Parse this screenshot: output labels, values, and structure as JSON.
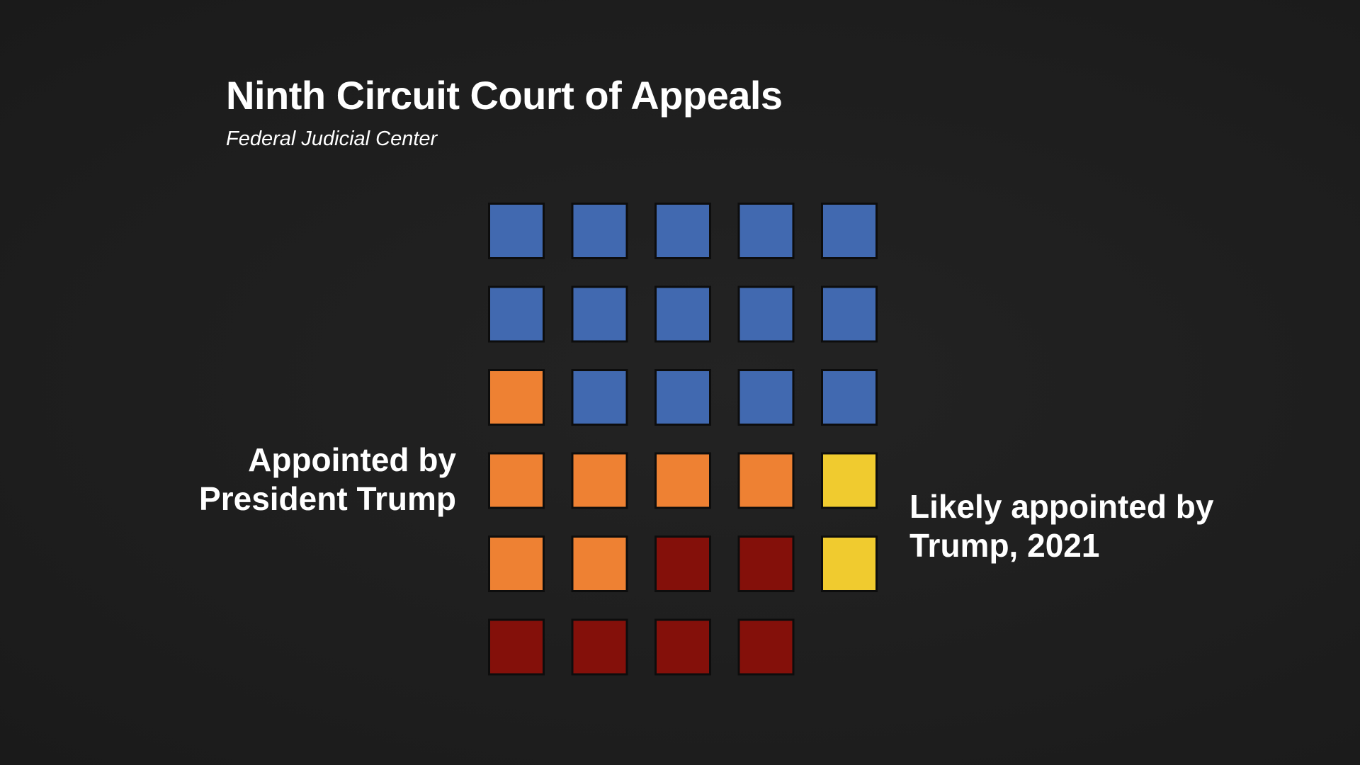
{
  "title": "Ninth Circuit Court of Appeals",
  "subtitle": "Federal Judicial Center",
  "annotations": {
    "left": [
      "Appointed by",
      "President Trump"
    ],
    "right": [
      "Likely appointed by",
      "Trump, 2021"
    ]
  },
  "colors": {
    "background": "#1e1e1e",
    "other": "#4169b0",
    "trump": "#ee8133",
    "trump_2021": "#f0cb2f",
    "dark_red": "#84100a",
    "outline": "#0d0d0d"
  },
  "chart_data": {
    "type": "waffle",
    "title": "Ninth Circuit Court of Appeals",
    "subtitle": "Federal Judicial Center",
    "columns": 5,
    "rows": 6,
    "cells": [
      "other",
      "other",
      "other",
      "other",
      "other",
      "other",
      "other",
      "other",
      "other",
      "other",
      "trump",
      "other",
      "other",
      "other",
      "other",
      "trump",
      "trump",
      "trump",
      "trump",
      "trump_2021",
      "trump",
      "trump",
      "dark_red",
      "dark_red",
      "trump_2021",
      "dark_red",
      "dark_red",
      "dark_red",
      "dark_red",
      null
    ]
  }
}
